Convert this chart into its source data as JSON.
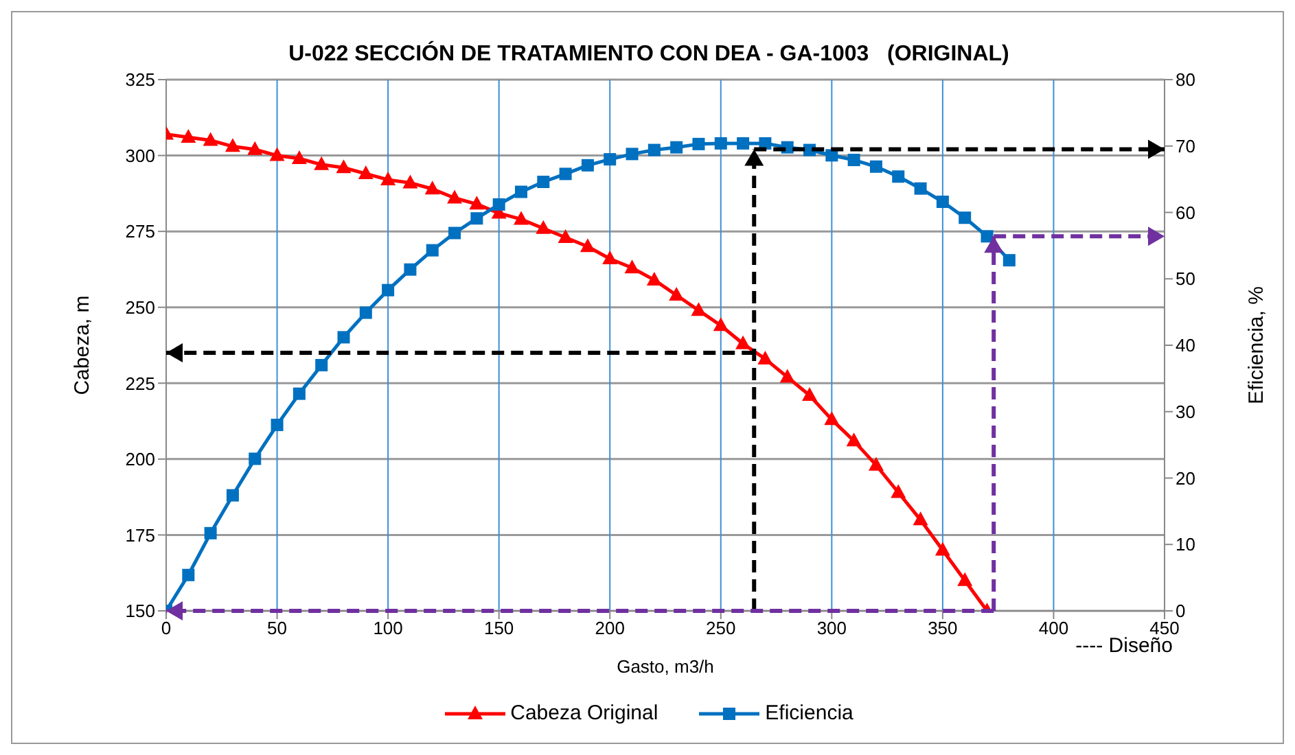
{
  "chart_data": {
    "type": "line",
    "title": "U-022 SECCIÓN DE TRATAMIENTO CON DEA - GA-1003   (ORIGINAL)",
    "xlabel": "Gasto, m3/h",
    "ylabel": "Cabeza, m",
    "y2label": "Eficiencia, %",
    "annotations": [
      "---- Diseño"
    ],
    "xlim": [
      0,
      450
    ],
    "xticks": [
      0,
      50,
      100,
      150,
      200,
      250,
      300,
      350,
      400,
      450
    ],
    "ylim": [
      150,
      325
    ],
    "yticks": [
      150,
      175,
      200,
      225,
      250,
      275,
      300,
      325
    ],
    "y2lim": [
      0,
      80
    ],
    "y2ticks": [
      0,
      10,
      20,
      30,
      40,
      50,
      60,
      70,
      80
    ],
    "grid": true,
    "legend": "bottom",
    "series": [
      {
        "name": "Cabeza Original",
        "color": "#ff0000",
        "marker": "triangle",
        "x": [
          0,
          10,
          20,
          30,
          40,
          50,
          60,
          70,
          80,
          90,
          100,
          110,
          120,
          130,
          140,
          150,
          160,
          170,
          180,
          190,
          200,
          210,
          220,
          230,
          240,
          250,
          260,
          270,
          280,
          290,
          300,
          310,
          320,
          330,
          340,
          350,
          360,
          370
        ],
        "values": [
          307,
          306,
          305,
          303,
          302,
          300,
          299,
          297,
          296,
          294,
          292,
          291,
          289,
          286,
          284,
          281,
          279,
          276,
          273,
          270,
          266,
          263,
          259,
          254,
          249,
          244,
          238,
          233,
          227,
          221,
          213,
          206,
          198,
          189,
          180,
          170,
          160,
          150
        ]
      },
      {
        "name": "Eficiencia",
        "color": "#0070c0",
        "marker": "square",
        "axis": "y2",
        "x": [
          0,
          10,
          20,
          30,
          40,
          50,
          60,
          70,
          80,
          90,
          100,
          110,
          120,
          130,
          140,
          150,
          160,
          170,
          180,
          190,
          200,
          210,
          220,
          230,
          240,
          250,
          260,
          270,
          280,
          290,
          300,
          310,
          320,
          330,
          340,
          350,
          360,
          370,
          380
        ],
        "values": [
          0,
          5.4,
          11.7,
          17.4,
          22.9,
          28,
          32.7,
          37,
          41.2,
          44.9,
          48.3,
          51.4,
          54.3,
          56.9,
          59.1,
          61.2,
          63.1,
          64.6,
          65.8,
          67.1,
          68,
          68.8,
          69.4,
          69.8,
          70.3,
          70.4,
          70.4,
          70.4,
          69.8,
          69.4,
          68.6,
          67.9,
          66.9,
          65.4,
          63.6,
          61.6,
          59.2,
          56.4,
          52.8
        ]
      },
      {
        "color": "#000000",
        "marker": "none",
        "line_style": "dashed",
        "axis": "y2",
        "x": [
          265,
          265
        ],
        "values": [
          0,
          69.5
        ]
      },
      {
        "color": "#000000",
        "marker": "none",
        "line_style": "dashed",
        "axis": "y2",
        "x": [
          265,
          450
        ],
        "values": [
          69.5,
          69.5
        ]
      },
      {
        "color": "#000000",
        "marker": "none",
        "line_style": "dashed",
        "x": [
          265,
          0
        ],
        "values": [
          235,
          235
        ]
      },
      {
        "color": "#7030a0",
        "marker": "none",
        "line_style": "dashed",
        "axis": "y2",
        "x": [
          373,
          0
        ],
        "values": [
          0,
          0
        ]
      },
      {
        "color": "#7030a0",
        "marker": "none",
        "line_style": "dashed",
        "axis": "y2",
        "x": [
          373,
          373
        ],
        "values": [
          0,
          56.4
        ]
      },
      {
        "color": "#7030a0",
        "marker": "none",
        "line_style": "dashed",
        "axis": "y2",
        "x": [
          373,
          450
        ],
        "values": [
          56.4,
          56.4
        ]
      }
    ]
  }
}
